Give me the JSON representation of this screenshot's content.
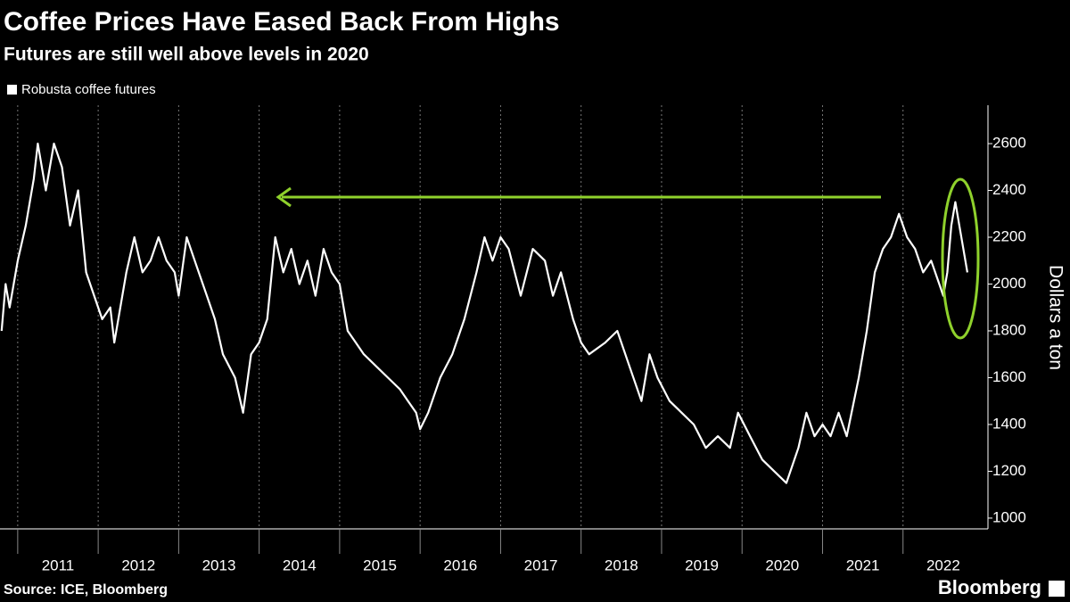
{
  "chart_data": {
    "type": "line",
    "title": "Coffee Prices Have Eased Back From Highs",
    "subtitle": "Futures are still well above levels in 2020",
    "y_label": "Dollars a ton",
    "source": "Source: ICE, Bloomberg",
    "logo": "Bloomberg",
    "x": [
      2010.8,
      2010.85,
      2010.9,
      2011.0,
      2011.1,
      2011.2,
      2011.25,
      2011.35,
      2011.45,
      2011.55,
      2011.65,
      2011.75,
      2011.85,
      2011.95,
      2012.05,
      2012.15,
      2012.2,
      2012.3,
      2012.35,
      2012.45,
      2012.55,
      2012.65,
      2012.75,
      2012.85,
      2012.95,
      2013.0,
      2013.1,
      2013.2,
      2013.35,
      2013.45,
      2013.55,
      2013.7,
      2013.8,
      2013.9,
      2014.0,
      2014.1,
      2014.2,
      2014.3,
      2014.4,
      2014.5,
      2014.6,
      2014.7,
      2014.8,
      2014.9,
      2015.0,
      2015.1,
      2015.2,
      2015.3,
      2015.45,
      2015.6,
      2015.75,
      2015.85,
      2015.95,
      2016.0,
      2016.1,
      2016.25,
      2016.4,
      2016.55,
      2016.7,
      2016.8,
      2016.9,
      2017.0,
      2017.1,
      2017.25,
      2017.4,
      2017.55,
      2017.65,
      2017.75,
      2017.9,
      2018.0,
      2018.1,
      2018.3,
      2018.45,
      2018.6,
      2018.75,
      2018.85,
      2018.95,
      2019.1,
      2019.25,
      2019.4,
      2019.55,
      2019.7,
      2019.85,
      2019.95,
      2020.1,
      2020.25,
      2020.4,
      2020.55,
      2020.7,
      2020.8,
      2020.9,
      2021.0,
      2021.1,
      2021.2,
      2021.3,
      2021.45,
      2021.55,
      2021.65,
      2021.75,
      2021.85,
      2021.95,
      2022.05,
      2022.15,
      2022.25,
      2022.35,
      2022.45,
      2022.5,
      2022.55,
      2022.6,
      2022.65,
      2022.7,
      2022.75,
      2022.8
    ],
    "series": [
      {
        "name": "Robusta coffee futures",
        "color": "#ffffff",
        "values": [
          1800,
          2000,
          1900,
          2100,
          2250,
          2450,
          2600,
          2400,
          2600,
          2500,
          2250,
          2400,
          2050,
          1950,
          1850,
          1900,
          1750,
          1950,
          2050,
          2200,
          2050,
          2100,
          2200,
          2100,
          2050,
          1950,
          2200,
          2100,
          1950,
          1850,
          1700,
          1600,
          1450,
          1700,
          1750,
          1850,
          2200,
          2050,
          2150,
          2000,
          2100,
          1950,
          2150,
          2050,
          2000,
          1800,
          1750,
          1700,
          1650,
          1600,
          1550,
          1500,
          1450,
          1380,
          1450,
          1600,
          1700,
          1850,
          2050,
          2200,
          2100,
          2200,
          2150,
          1950,
          2150,
          2100,
          1950,
          2050,
          1850,
          1750,
          1700,
          1750,
          1800,
          1650,
          1500,
          1700,
          1600,
          1500,
          1450,
          1400,
          1300,
          1350,
          1300,
          1450,
          1350,
          1250,
          1200,
          1150,
          1300,
          1450,
          1350,
          1400,
          1350,
          1450,
          1350,
          1600,
          1800,
          2050,
          2150,
          2200,
          2300,
          2200,
          2150,
          2050,
          2100,
          2000,
          1950,
          2050,
          2250,
          2350,
          2250,
          2150,
          2050
        ]
      }
    ],
    "xlim": [
      2010.78,
      2023.0
    ],
    "xticks": [
      2011,
      2012,
      2013,
      2014,
      2015,
      2016,
      2017,
      2018,
      2019,
      2020,
      2021,
      2022
    ],
    "ylim": [
      954,
      2764
    ],
    "yticks": [
      1000,
      1200,
      1400,
      1600,
      1800,
      2000,
      2200,
      2400,
      2600
    ],
    "xgrid": true
  }
}
